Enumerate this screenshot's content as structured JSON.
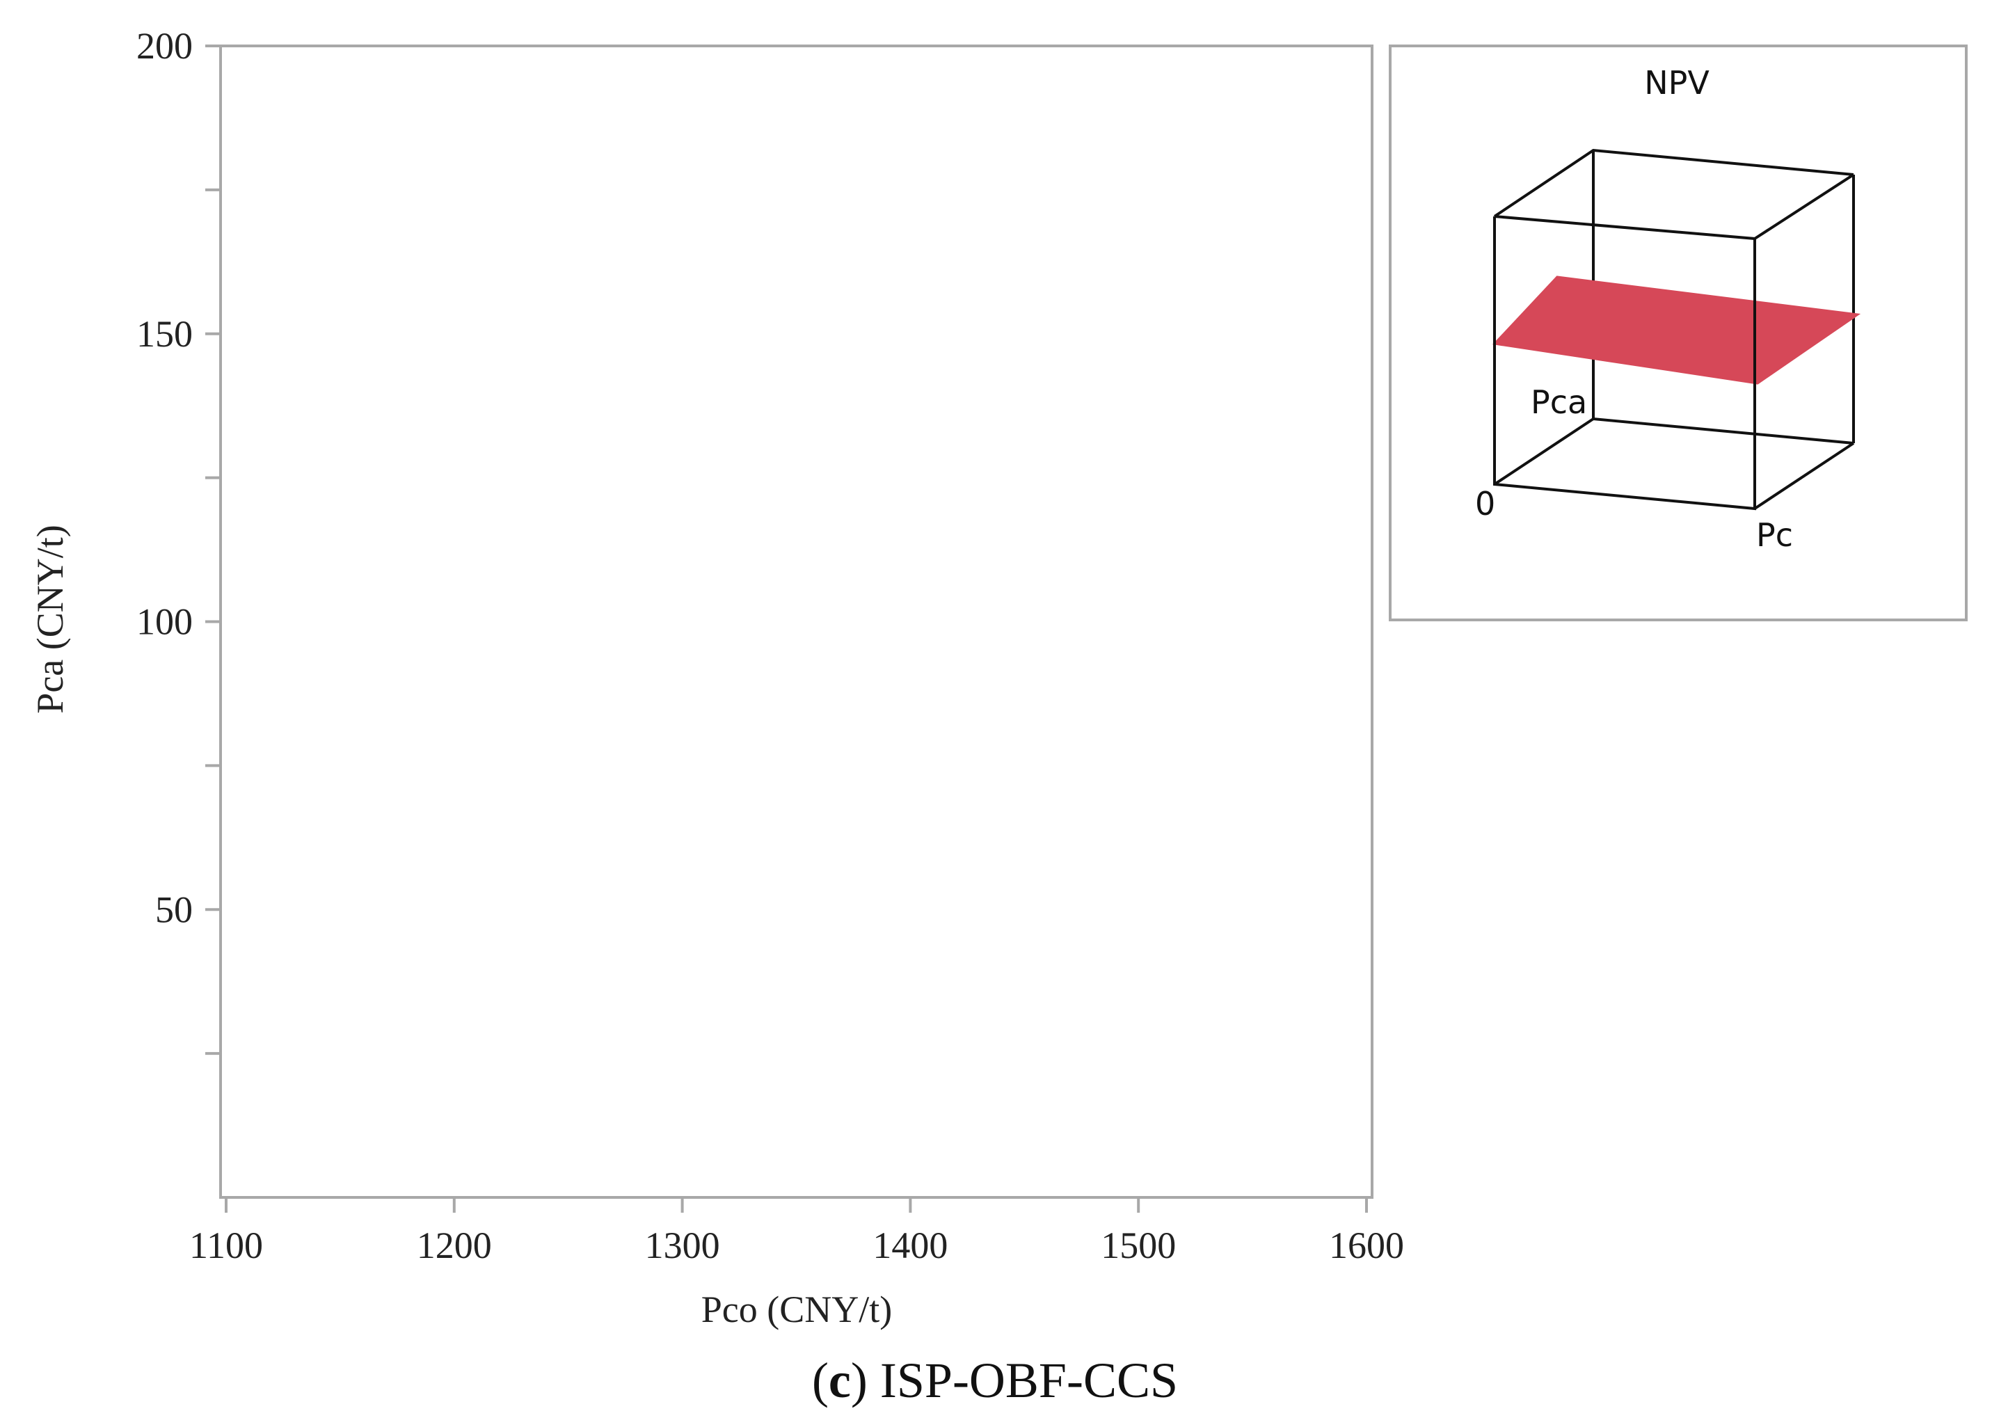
{
  "chart_data": {
    "type": "heatmap",
    "xlabel": "Pco (CNY/t)",
    "ylabel": "Pca (CNY/t)",
    "xlim": [
      1100,
      1600
    ],
    "ylim": [
      0,
      200
    ],
    "xticks": [
      1100,
      1200,
      1300,
      1400,
      1500,
      1600
    ],
    "yticks": [
      50,
      100,
      150,
      200
    ],
    "caption_letter": "c",
    "caption_open": "(",
    "caption_close": ")",
    "caption_rest": " ISP-OBF-CCS",
    "inset": {
      "title": "NPV",
      "axis_y_label": "Pca",
      "axis_x_label": "Pc",
      "origin_label": "0",
      "surface_color": "#d64858"
    }
  }
}
